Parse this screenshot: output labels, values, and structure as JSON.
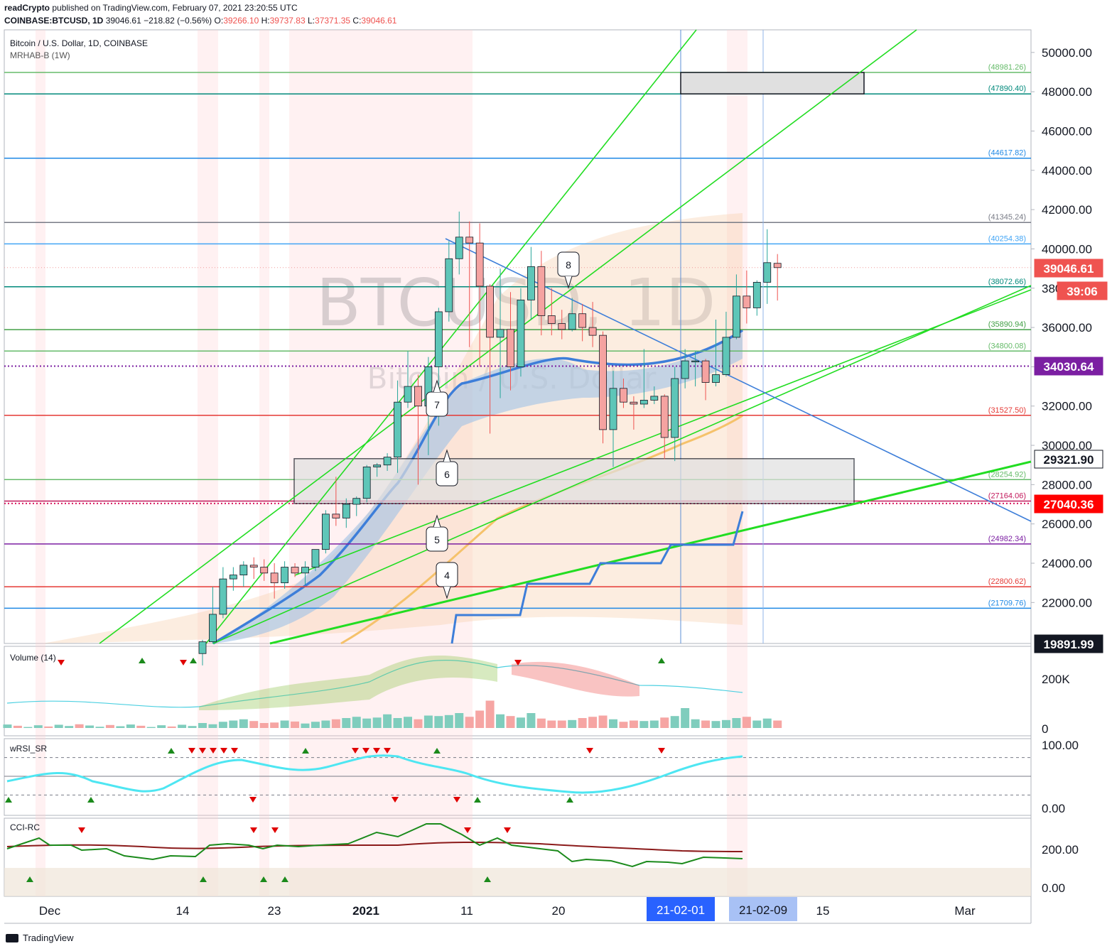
{
  "header": {
    "publisher": "readCrypto",
    "published_line": " published on TradingView.com, February 07, 2021 23:20:55 UTC",
    "symbol": "COINBASE:BTCUSD, 1D",
    "last": "39046.61",
    "change": "−218.82 (−0.56%)",
    "o_label": "O:",
    "o": "39266.10",
    "h_label": "H:",
    "h": "39737.83",
    "l_label": "L:",
    "l": "37371.35",
    "c_label": "C:",
    "c": "39046.61"
  },
  "panes": {
    "main_title": "Bitcoin / U.S. Dollar, 1D, COINBASE",
    "main_indicator": "MRHAB-B (1W)",
    "watermark_big": "BTCUSD, 1D",
    "watermark_small": "Bitcoin / U.S. Dollar",
    "volume": "Volume (14)",
    "wrsi": "wRSI_SR",
    "cci": "CCI-RC"
  },
  "footer": {
    "brand": "TradingView"
  },
  "colors": {
    "up": "#26a69a",
    "down": "#ef5350",
    "accent_blue": "#2962ff",
    "trend_green": "#00e600",
    "purple": "#7b1fa2"
  },
  "chart_data": [
    {
      "type": "candlestick",
      "title": "Bitcoin / U.S. Dollar, 1D, COINBASE",
      "x_ticks": [
        "Dec",
        "14",
        "23",
        "2021",
        "11",
        "20",
        "21-02-01",
        "21-02-09",
        "15",
        "Mar"
      ],
      "y_ticks": [
        "50000.00",
        "48000.00",
        "46000.00",
        "44000.00",
        "42000.00",
        "40000.00",
        "38000.00",
        "36000.00",
        "34000.00",
        "32000.00",
        "30000.00",
        "28000.00",
        "26000.00",
        "24000.00",
        "22000.00"
      ],
      "ylim": [
        19850,
        51500
      ],
      "candles": [
        {
          "o": 19400,
          "h": 20100,
          "l": 18800,
          "c": 20000
        },
        {
          "o": 20000,
          "h": 22800,
          "l": 19900,
          "c": 21400
        },
        {
          "o": 21400,
          "h": 23800,
          "l": 21200,
          "c": 23200
        },
        {
          "o": 23200,
          "h": 23800,
          "l": 22600,
          "c": 23400
        },
        {
          "o": 23400,
          "h": 24100,
          "l": 22800,
          "c": 23900
        },
        {
          "o": 23900,
          "h": 24300,
          "l": 23200,
          "c": 23800
        },
        {
          "o": 23800,
          "h": 24200,
          "l": 23100,
          "c": 23500
        },
        {
          "o": 23500,
          "h": 24000,
          "l": 22200,
          "c": 23000
        },
        {
          "o": 23000,
          "h": 24100,
          "l": 22700,
          "c": 23800
        },
        {
          "o": 23800,
          "h": 24000,
          "l": 23300,
          "c": 23500
        },
        {
          "o": 23500,
          "h": 24100,
          "l": 22900,
          "c": 23800
        },
        {
          "o": 23800,
          "h": 24400,
          "l": 23600,
          "c": 24700
        },
        {
          "o": 24700,
          "h": 26700,
          "l": 24500,
          "c": 26500
        },
        {
          "o": 26500,
          "h": 28400,
          "l": 25900,
          "c": 26300
        },
        {
          "o": 26300,
          "h": 27300,
          "l": 25800,
          "c": 27000
        },
        {
          "o": 27000,
          "h": 27400,
          "l": 26400,
          "c": 27300
        },
        {
          "o": 27300,
          "h": 29000,
          "l": 27100,
          "c": 28900
        },
        {
          "o": 28900,
          "h": 29100,
          "l": 28400,
          "c": 29000
        },
        {
          "o": 29000,
          "h": 29600,
          "l": 28700,
          "c": 29400
        },
        {
          "o": 29400,
          "h": 33300,
          "l": 28600,
          "c": 32200
        },
        {
          "o": 32200,
          "h": 34800,
          "l": 31900,
          "c": 33000
        },
        {
          "o": 33000,
          "h": 33600,
          "l": 28000,
          "c": 32000
        },
        {
          "o": 32000,
          "h": 34500,
          "l": 29500,
          "c": 34000
        },
        {
          "o": 34000,
          "h": 37000,
          "l": 31000,
          "c": 36800
        },
        {
          "o": 36800,
          "h": 40400,
          "l": 36300,
          "c": 39500
        },
        {
          "o": 39500,
          "h": 41900,
          "l": 38700,
          "c": 40600
        },
        {
          "o": 40600,
          "h": 41400,
          "l": 35000,
          "c": 40300
        },
        {
          "o": 40300,
          "h": 41300,
          "l": 34000,
          "c": 38100
        },
        {
          "o": 38100,
          "h": 38200,
          "l": 30600,
          "c": 35500
        },
        {
          "o": 35500,
          "h": 39000,
          "l": 32400,
          "c": 35900
        },
        {
          "o": 35900,
          "h": 37800,
          "l": 32800,
          "c": 34000
        },
        {
          "o": 34000,
          "h": 38000,
          "l": 33500,
          "c": 37400
        },
        {
          "o": 37400,
          "h": 40100,
          "l": 36400,
          "c": 39100
        },
        {
          "o": 39100,
          "h": 39900,
          "l": 35600,
          "c": 36600
        },
        {
          "o": 36600,
          "h": 38000,
          "l": 35600,
          "c": 36200
        },
        {
          "o": 36200,
          "h": 36900,
          "l": 35400,
          "c": 35900
        },
        {
          "o": 35900,
          "h": 37500,
          "l": 35800,
          "c": 36700
        },
        {
          "o": 36700,
          "h": 37200,
          "l": 35300,
          "c": 36000
        },
        {
          "o": 36000,
          "h": 37300,
          "l": 35000,
          "c": 35600
        },
        {
          "o": 35600,
          "h": 35800,
          "l": 30100,
          "c": 30800
        },
        {
          "o": 30800,
          "h": 33800,
          "l": 28900,
          "c": 32900
        },
        {
          "o": 32900,
          "h": 33400,
          "l": 31900,
          "c": 32200
        },
        {
          "o": 32200,
          "h": 32500,
          "l": 30800,
          "c": 32100
        },
        {
          "o": 32100,
          "h": 34900,
          "l": 31900,
          "c": 32300
        },
        {
          "o": 32300,
          "h": 33000,
          "l": 32100,
          "c": 32500
        },
        {
          "o": 32500,
          "h": 32600,
          "l": 29300,
          "c": 30400
        },
        {
          "o": 30400,
          "h": 34000,
          "l": 29200,
          "c": 33400
        },
        {
          "o": 33400,
          "h": 34900,
          "l": 32900,
          "c": 34300
        },
        {
          "o": 34300,
          "h": 34800,
          "l": 33000,
          "c": 34300
        },
        {
          "o": 34300,
          "h": 34400,
          "l": 32300,
          "c": 33200
        },
        {
          "o": 33200,
          "h": 36400,
          "l": 33000,
          "c": 33600
        },
        {
          "o": 33600,
          "h": 36800,
          "l": 33500,
          "c": 35500
        },
        {
          "o": 35500,
          "h": 38700,
          "l": 35400,
          "c": 37600
        },
        {
          "o": 37600,
          "h": 38900,
          "l": 36200,
          "c": 37000
        },
        {
          "o": 37000,
          "h": 38400,
          "l": 36600,
          "c": 38300
        },
        {
          "o": 38300,
          "h": 41000,
          "l": 37200,
          "c": 39300
        },
        {
          "o": 39266.1,
          "h": 39737.83,
          "l": 37371.35,
          "c": 39046.61
        }
      ],
      "horizontal_levels": [
        {
          "value": "48981.26",
          "color": "#66bb6a"
        },
        {
          "value": "47890.40",
          "color": "#00897b"
        },
        {
          "value": "44617.82",
          "color": "#1e88e5"
        },
        {
          "value": "41345.24",
          "color": "#787b86"
        },
        {
          "value": "40254.38",
          "color": "#42a5f5"
        },
        {
          "value": "38072.66",
          "color": "#00897b"
        },
        {
          "value": "35890.94",
          "color": "#43a047"
        },
        {
          "value": "34800.08",
          "color": "#66bb6a"
        },
        {
          "value": "31527.50",
          "color": "#e53935"
        },
        {
          "value": "28254.92",
          "color": "#66bb6a"
        },
        {
          "value": "27164.06",
          "color": "#c2185b"
        },
        {
          "value": "24982.34",
          "color": "#7b1fa2"
        },
        {
          "value": "22800.62",
          "color": "#e53935"
        },
        {
          "value": "21709.76",
          "color": "#1e88e5"
        }
      ],
      "price_badges": [
        {
          "text": "39046.61",
          "bg": "#ef5350",
          "fg": "#ffffff"
        },
        {
          "text": "39:06",
          "bg": "#ef5350",
          "fg": "#ffffff"
        },
        {
          "text": "34030.64",
          "bg": "#7b1fa2",
          "fg": "#ffffff"
        },
        {
          "text": "29321.90",
          "bg": "#ffffff",
          "fg": "#131722"
        },
        {
          "text": "27040.36",
          "bg": "#ff0000",
          "fg": "#ffffff"
        },
        {
          "text": "19891.99",
          "bg": "#131722",
          "fg": "#ffffff"
        }
      ],
      "wave_labels": [
        "4",
        "5",
        "6",
        "7",
        "8"
      ]
    },
    {
      "type": "bar",
      "title": "Volume (14)",
      "y_ticks": [
        "200K",
        "0"
      ],
      "ylim": [
        0,
        300000
      ]
    },
    {
      "type": "line",
      "title": "wRSI_SR",
      "y_ticks": [
        "100.00",
        "0.00"
      ],
      "ylim": [
        -5,
        110
      ]
    },
    {
      "type": "line",
      "title": "CCI-RC",
      "y_ticks": [
        "200.00",
        "0.00"
      ],
      "ylim": [
        -30,
        400
      ]
    }
  ]
}
